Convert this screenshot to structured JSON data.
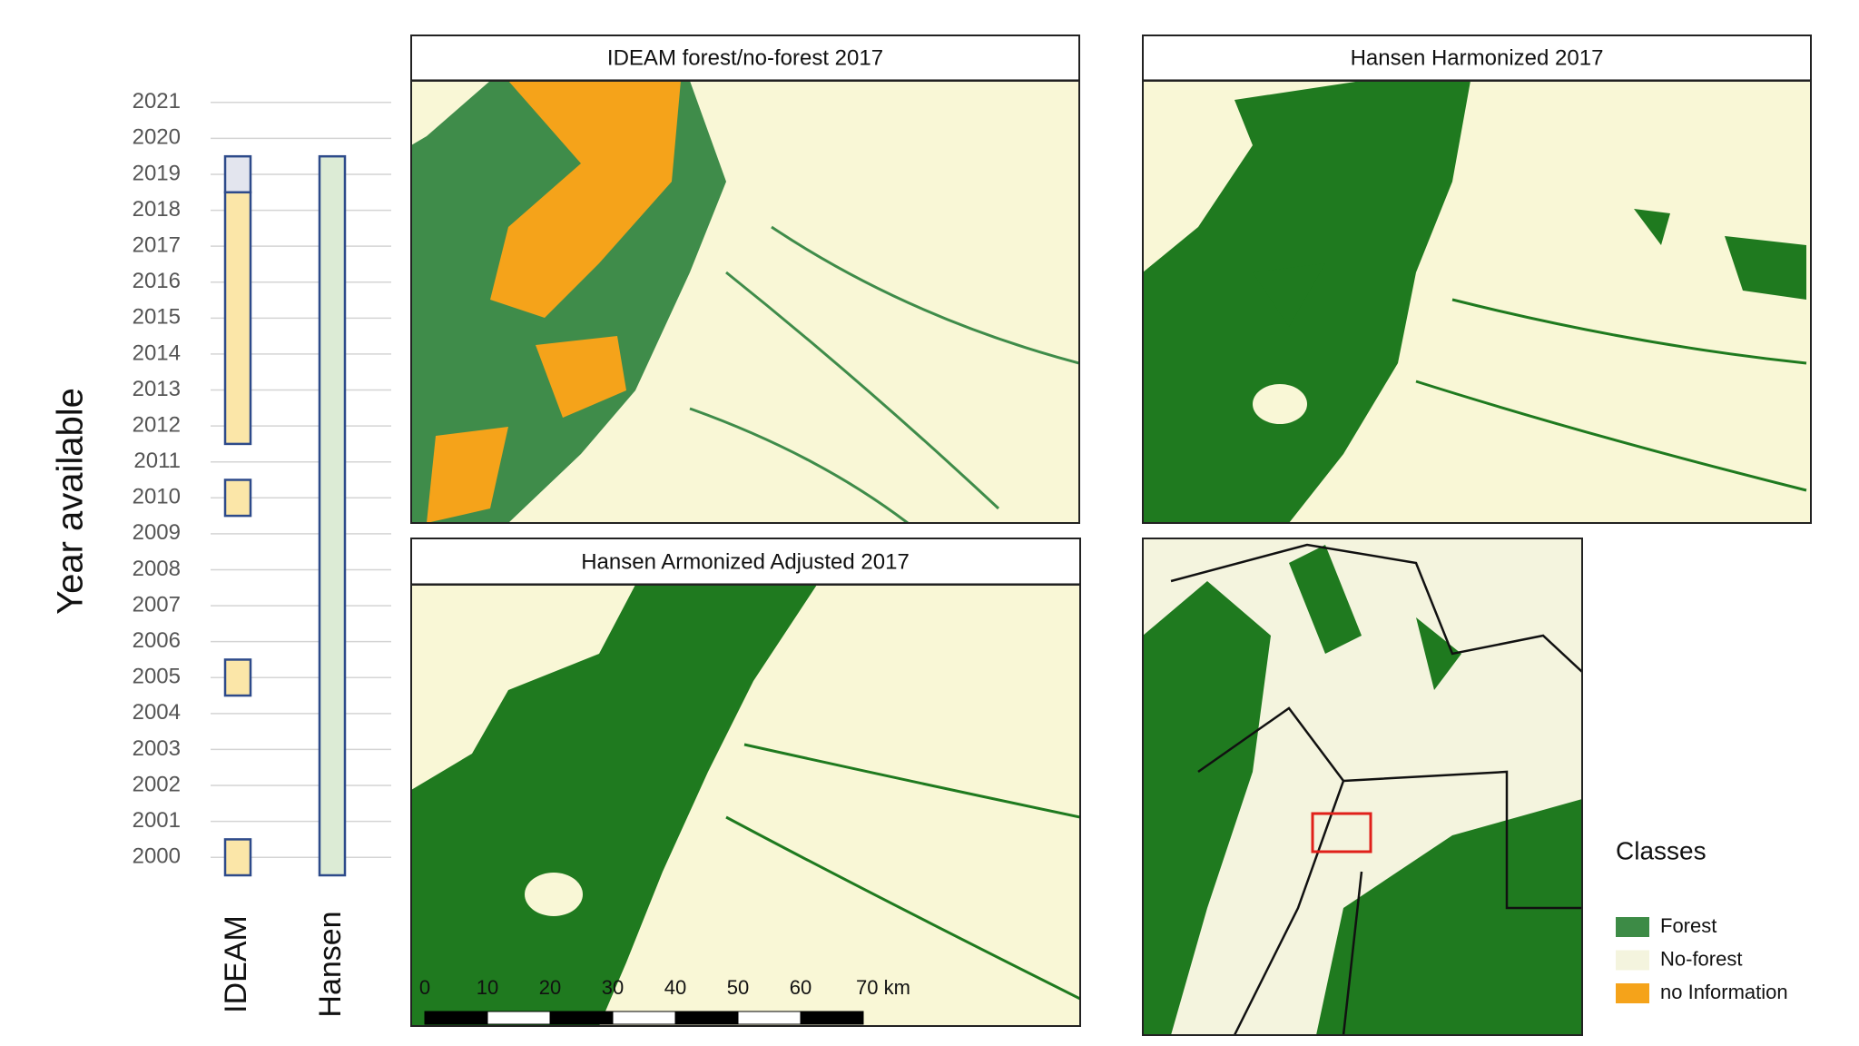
{
  "chart_data": {
    "type": "range",
    "y_label": "Year available",
    "categories": [
      "IDEAM",
      "Hansen"
    ],
    "series": [
      {
        "name": "IDEAM",
        "segments": [
          {
            "from": 2000,
            "to": 2000,
            "color": "#fbe6a8"
          },
          {
            "from": 2005,
            "to": 2005,
            "color": "#fbe6a8"
          },
          {
            "from": 2010,
            "to": 2010,
            "color": "#fbe6a8"
          },
          {
            "from": 2012,
            "to": 2018,
            "color": "#fbe6a8"
          },
          {
            "from": 2019,
            "to": 2019,
            "color": "#e3e5ee"
          }
        ]
      },
      {
        "name": "Hansen",
        "segments": [
          {
            "from": 2000,
            "to": 2019,
            "color": "#dcebd5"
          }
        ]
      }
    ],
    "ylim": [
      1999.5,
      2021.5
    ],
    "yticks": [
      2000,
      2001,
      2002,
      2003,
      2004,
      2005,
      2006,
      2007,
      2008,
      2009,
      2010,
      2011,
      2012,
      2013,
      2014,
      2015,
      2016,
      2017,
      2018,
      2019,
      2020,
      2021
    ],
    "grid": true,
    "bar_outline": "#2d4a8a"
  },
  "panels": [
    {
      "title": "IDEAM forest/no-forest 2017"
    },
    {
      "title": "Hansen Harmonized 2017"
    },
    {
      "title": "Hansen Armonized Adjusted 2017"
    }
  ],
  "scale_bar": {
    "labels": [
      "0",
      "10",
      "20",
      "30",
      "40",
      "50",
      "60",
      "70 km"
    ]
  },
  "legend": {
    "title": "Classes",
    "items": [
      {
        "label": "Forest",
        "color": "#3d8b46"
      },
      {
        "label": "No-forest",
        "color": "#f4f4de"
      },
      {
        "label": "no Information",
        "color": "#f5a31a"
      }
    ]
  }
}
